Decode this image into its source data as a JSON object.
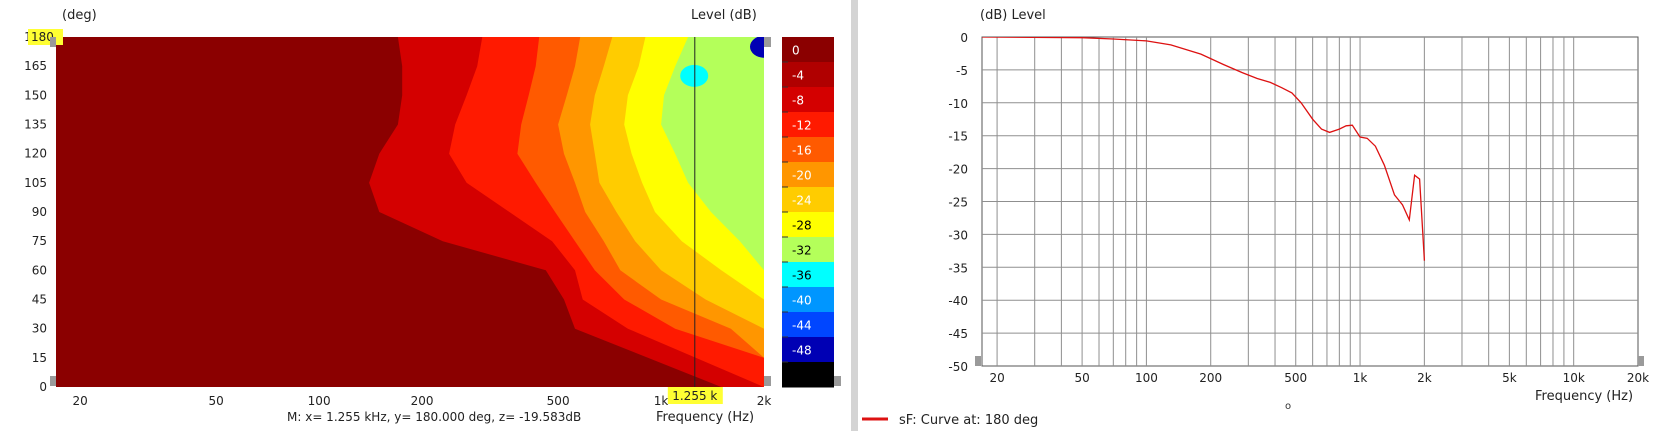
{
  "chart_data": [
    {
      "type": "heatmap",
      "title": "",
      "xlabel": "Frequency  (Hz)",
      "ylabel": "(deg)",
      "x_scale": "log",
      "xlim": [
        17,
        2000
      ],
      "ylim": [
        0,
        180
      ],
      "x_ticks": [
        {
          "value": 20,
          "label": "20"
        },
        {
          "value": 50,
          "label": "50"
        },
        {
          "value": 100,
          "label": "100"
        },
        {
          "value": 200,
          "label": "200"
        },
        {
          "value": 500,
          "label": "500"
        },
        {
          "value": 1000,
          "label": "1k"
        },
        {
          "value": 2000,
          "label": "2k"
        }
      ],
      "y_ticks": [
        0,
        15,
        30,
        45,
        60,
        75,
        90,
        105,
        120,
        135,
        150,
        165,
        180
      ],
      "colorbar": {
        "title": "Level  (dB)",
        "levels": [
          0,
          -4,
          -8,
          -12,
          -16,
          -20,
          -24,
          -28,
          -32,
          -36,
          -40,
          -44,
          -48
        ],
        "colors": [
          "#8b0000",
          "#b00000",
          "#d40000",
          "#ff1a00",
          "#ff5a00",
          "#ff9600",
          "#ffcc00",
          "#ffff00",
          "#b4ff5a",
          "#00ffff",
          "#0096ff",
          "#0046ff",
          "#0000b4",
          "#000000"
        ]
      },
      "contours": [
        {
          "level": -4,
          "freq_at_angle": [
            [
              0,
              1500
            ],
            [
              30,
              560
            ],
            [
              45,
              520
            ],
            [
              60,
              460
            ],
            [
              75,
              230
            ],
            [
              90,
              150
            ],
            [
              105,
              140
            ],
            [
              120,
              150
            ],
            [
              135,
              170
            ],
            [
              150,
              175
            ],
            [
              165,
              175
            ],
            [
              180,
              170
            ]
          ]
        },
        {
          "level": -8,
          "freq_at_angle": [
            [
              0,
              2000
            ],
            [
              30,
              800
            ],
            [
              45,
              590
            ],
            [
              60,
              560
            ],
            [
              75,
              480
            ],
            [
              90,
              360
            ],
            [
              105,
              270
            ],
            [
              120,
              240
            ],
            [
              135,
              250
            ],
            [
              150,
              270
            ],
            [
              165,
              290
            ],
            [
              180,
              300
            ]
          ]
        },
        {
          "level": -12,
          "freq_at_angle": [
            [
              0,
              2000
            ],
            [
              15,
              2000
            ],
            [
              30,
              1100
            ],
            [
              45,
              780
            ],
            [
              60,
              640
            ],
            [
              75,
              560
            ],
            [
              90,
              490
            ],
            [
              105,
              430
            ],
            [
              120,
              380
            ],
            [
              135,
              390
            ],
            [
              150,
              410
            ],
            [
              165,
              430
            ],
            [
              180,
              440
            ]
          ]
        },
        {
          "level": -16,
          "freq_at_angle": [
            [
              15,
              2000
            ],
            [
              30,
              1600
            ],
            [
              45,
              1000
            ],
            [
              60,
              760
            ],
            [
              75,
              680
            ],
            [
              90,
              600
            ],
            [
              105,
              560
            ],
            [
              120,
              520
            ],
            [
              135,
              500
            ],
            [
              150,
              530
            ],
            [
              165,
              560
            ],
            [
              180,
              580
            ]
          ]
        },
        {
          "level": -20,
          "freq_at_angle": [
            [
              30,
              2000
            ],
            [
              45,
              1350
            ],
            [
              60,
              1000
            ],
            [
              75,
              840
            ],
            [
              90,
              740
            ],
            [
              105,
              660
            ],
            [
              120,
              640
            ],
            [
              135,
              620
            ],
            [
              150,
              640
            ],
            [
              165,
              680
            ],
            [
              180,
              720
            ]
          ]
        },
        {
          "level": -24,
          "freq_at_angle": [
            [
              45,
              2000
            ],
            [
              60,
              1500
            ],
            [
              75,
              1150
            ],
            [
              90,
              960
            ],
            [
              105,
              880
            ],
            [
              120,
              820
            ],
            [
              135,
              780
            ],
            [
              150,
              800
            ],
            [
              165,
              860
            ],
            [
              180,
              900
            ]
          ]
        },
        {
          "level": -28,
          "freq_at_angle": [
            [
              60,
              2000
            ],
            [
              75,
              1700
            ],
            [
              90,
              1400
            ],
            [
              105,
              1200
            ],
            [
              120,
              1100
            ],
            [
              135,
              1000
            ],
            [
              150,
              1020
            ],
            [
              165,
              1100
            ],
            [
              180,
              1200
            ]
          ]
        }
      ],
      "spots": [
        {
          "level": -32,
          "freq": 1250,
          "angle": 160
        },
        {
          "level": -44,
          "freq": 2000,
          "angle": 175
        }
      ],
      "cursor": {
        "x_label": "1.255 k",
        "y_label": "180",
        "freq_hz": 1255,
        "angle_deg": 180
      },
      "readout": "M:  x= 1.255 kHz,  y= 180.000 deg, z= -19.583dB"
    },
    {
      "type": "line",
      "title": "",
      "xlabel": "Frequency  (Hz)",
      "ylabel": "(dB)  Level",
      "x_scale": "log",
      "xlim": [
        17,
        20000
      ],
      "ylim": [
        -50,
        0
      ],
      "x_ticks": [
        {
          "value": 20,
          "label": "20"
        },
        {
          "value": 50,
          "label": "50"
        },
        {
          "value": 100,
          "label": "100"
        },
        {
          "value": 200,
          "label": "200"
        },
        {
          "value": 500,
          "label": "500"
        },
        {
          "value": 1000,
          "label": "1k"
        },
        {
          "value": 2000,
          "label": "2k"
        },
        {
          "value": 5000,
          "label": "5k"
        },
        {
          "value": 10000,
          "label": "10k"
        },
        {
          "value": 20000,
          "label": "20k"
        }
      ],
      "y_ticks": [
        0,
        -5,
        -10,
        -15,
        -20,
        -25,
        -30,
        -35,
        -40,
        -45,
        -50
      ],
      "grid": true,
      "series": [
        {
          "name": "sF: Curve at: 180 deg",
          "color": "#dd1111",
          "x": [
            17,
            50,
            70,
            100,
            130,
            180,
            230,
            280,
            330,
            380,
            430,
            480,
            530,
            600,
            660,
            720,
            800,
            860,
            920,
            1000,
            1080,
            1180,
            1300,
            1450,
            1580,
            1700,
            1800,
            1900,
            2000
          ],
          "y": [
            0,
            -0.1,
            -0.3,
            -0.6,
            -1.2,
            -2.6,
            -4.2,
            -5.4,
            -6.3,
            -6.9,
            -7.7,
            -8.5,
            -10.0,
            -12.5,
            -14.0,
            -14.5,
            -14.0,
            -13.5,
            -13.4,
            -15.2,
            -15.4,
            -16.6,
            -19.5,
            -24.0,
            -25.5,
            -27.8,
            -21.0,
            -21.6,
            -34.0
          ]
        }
      ],
      "legend_position": "bottom-left",
      "extra_mark": "o"
    }
  ]
}
